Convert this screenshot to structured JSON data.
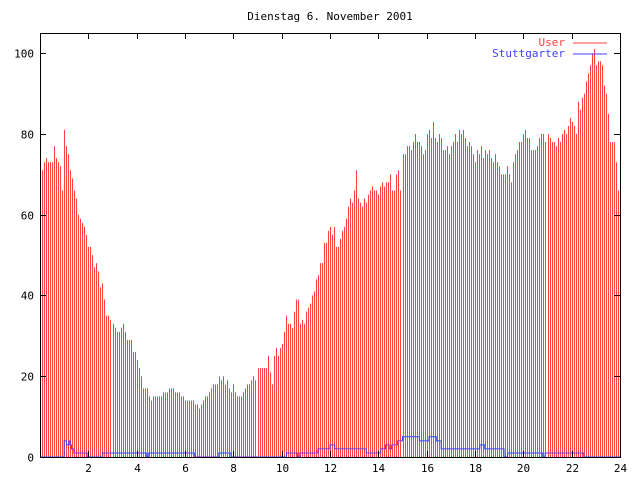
{
  "chart_data": {
    "type": "bar",
    "title": "Dienstag 6. November 2001",
    "xlabel": "",
    "ylabel": "",
    "xlim": [
      0,
      24
    ],
    "ylim": [
      0,
      105
    ],
    "x_ticks": [
      2,
      4,
      6,
      8,
      10,
      12,
      14,
      16,
      18,
      20,
      22,
      24
    ],
    "y_ticks": [
      0,
      20,
      40,
      60,
      80,
      100
    ],
    "x_tick_labels": [
      "2",
      "4",
      "6",
      "8",
      "10",
      "12",
      "14",
      "16",
      "18",
      "20",
      "22",
      "24"
    ],
    "y_tick_labels": [
      "0",
      "20",
      "40",
      "60",
      "80",
      "100"
    ],
    "legend": {
      "placement": "top-right",
      "entries": [
        "User",
        "Stuttgarter"
      ]
    },
    "colors": {
      "User": "#ff4040",
      "Stuttgarter": "#4040ff",
      "axis": "#000000"
    },
    "series": [
      {
        "name": "User",
        "type": "impulses",
        "interval_minutes": 5,
        "values": [
          70,
          71,
          73,
          74,
          73,
          73,
          73,
          77,
          74,
          73,
          72,
          66,
          81,
          77,
          75,
          71,
          69,
          66,
          64,
          60,
          59,
          58,
          57,
          55,
          52,
          52,
          50,
          47,
          48,
          46,
          42,
          43,
          39,
          35,
          35,
          34,
          33,
          32,
          31,
          31,
          32,
          33,
          31,
          29,
          29,
          29,
          26,
          26,
          24,
          22,
          20,
          17,
          17,
          17,
          15,
          14,
          15,
          15,
          15,
          15,
          15,
          16,
          16,
          16,
          17,
          17,
          17,
          16,
          16,
          16,
          15,
          15,
          14,
          14,
          14,
          14,
          14,
          13,
          13,
          12,
          13,
          14,
          15,
          15,
          16,
          17,
          18,
          18,
          18,
          20,
          19,
          20,
          18,
          19,
          17,
          16,
          18,
          16,
          15,
          15,
          15,
          16,
          17,
          18,
          18,
          19,
          20,
          19,
          22,
          22,
          22,
          22,
          22,
          25,
          21,
          18,
          25,
          27,
          25,
          27,
          28,
          31,
          35,
          33,
          33,
          32,
          36,
          39,
          39,
          33,
          34,
          33,
          36,
          37,
          38,
          40,
          41,
          44,
          45,
          48,
          48,
          53,
          53,
          56,
          57,
          55,
          57,
          52,
          52,
          54,
          56,
          57,
          59,
          62,
          64,
          63,
          66,
          71,
          64,
          63,
          62,
          64,
          63,
          65,
          66,
          67,
          66,
          66,
          65,
          67,
          68,
          67,
          68,
          68,
          70,
          66,
          66,
          70,
          71,
          66,
          75,
          75,
          77,
          77,
          76,
          78,
          80,
          78,
          78,
          77,
          75,
          76,
          80,
          81,
          79,
          83,
          79,
          78,
          80,
          79,
          76,
          76,
          77,
          75,
          77,
          78,
          80,
          78,
          81,
          80,
          81,
          79,
          77,
          78,
          77,
          75,
          73,
          76,
          75,
          77,
          74,
          76,
          75,
          76,
          74,
          73,
          75,
          73,
          72,
          70,
          70,
          70,
          72,
          70,
          68,
          73,
          75,
          76,
          78,
          78,
          80,
          81,
          79,
          79,
          76,
          76,
          76,
          77,
          79,
          80,
          80,
          78,
          80,
          79,
          78,
          78,
          77,
          79,
          78,
          80,
          81,
          80,
          82,
          84,
          83,
          82,
          80,
          88,
          86,
          89,
          90,
          93,
          95,
          97,
          100,
          101,
          97,
          98,
          98,
          97,
          92,
          90,
          85,
          78,
          78,
          78,
          73,
          66
        ]
      },
      {
        "name": "Stuttgarter",
        "type": "steps",
        "steps": [
          [
            0,
            0
          ],
          [
            1.0,
            4
          ],
          [
            1.1,
            3
          ],
          [
            1.2,
            4
          ],
          [
            1.25,
            3
          ],
          [
            1.3,
            2
          ],
          [
            1.4,
            1
          ],
          [
            1.95,
            0
          ],
          [
            2.6,
            1
          ],
          [
            4.4,
            0
          ],
          [
            4.5,
            1
          ],
          [
            6.4,
            0
          ],
          [
            7.4,
            1
          ],
          [
            7.9,
            0
          ],
          [
            10.2,
            1
          ],
          [
            10.65,
            0
          ],
          [
            10.75,
            1
          ],
          [
            11.5,
            2
          ],
          [
            12.0,
            3
          ],
          [
            12.2,
            2
          ],
          [
            13.5,
            1
          ],
          [
            14.1,
            2
          ],
          [
            14.3,
            3
          ],
          [
            14.45,
            2
          ],
          [
            14.55,
            3
          ],
          [
            14.8,
            4
          ],
          [
            15.0,
            5
          ],
          [
            15.7,
            4
          ],
          [
            16.1,
            5
          ],
          [
            16.4,
            4
          ],
          [
            16.6,
            2
          ],
          [
            18.2,
            3
          ],
          [
            18.4,
            2
          ],
          [
            19.2,
            0
          ],
          [
            19.35,
            1
          ],
          [
            20.8,
            0
          ],
          [
            20.9,
            1
          ],
          [
            22.5,
            0
          ],
          [
            24,
            0
          ]
        ]
      }
    ]
  }
}
